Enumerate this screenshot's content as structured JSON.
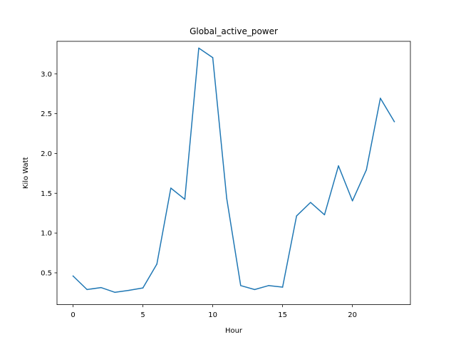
{
  "chart_data": {
    "type": "line",
    "title": "Global_active_power",
    "xlabel": "Hour",
    "ylabel": "Kilo Watt",
    "xlim": [
      -1.15,
      24.15
    ],
    "ylim": [
      0.1,
      3.41
    ],
    "xticks": [
      0,
      5,
      10,
      15,
      20
    ],
    "xtick_labels": [
      "0",
      "5",
      "10",
      "15",
      "20"
    ],
    "yticks": [
      0.5,
      1.0,
      1.5,
      2.0,
      2.5,
      3.0
    ],
    "ytick_labels": [
      "0.5",
      "1.0",
      "1.5",
      "2.0",
      "2.5",
      "3.0"
    ],
    "grid": false,
    "series": [
      {
        "color": "#1f77b4",
        "x": [
          0,
          1,
          2,
          3,
          4,
          5,
          6,
          7,
          8,
          9,
          10,
          11,
          12,
          13,
          14,
          15,
          16,
          17,
          18,
          19,
          20,
          21,
          22,
          23
        ],
        "values": [
          0.46,
          0.29,
          0.315,
          0.255,
          0.28,
          0.31,
          0.61,
          1.565,
          1.425,
          3.325,
          3.205,
          1.435,
          0.34,
          0.29,
          0.34,
          0.32,
          1.215,
          1.385,
          1.23,
          1.845,
          1.405,
          1.795,
          2.695,
          2.4
        ]
      }
    ]
  }
}
